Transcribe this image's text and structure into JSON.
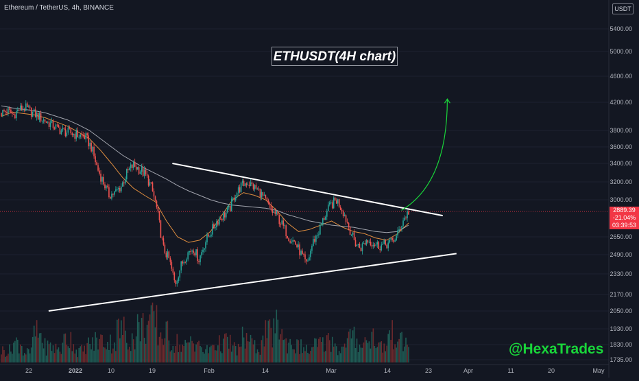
{
  "header": {
    "symbol": "Ethereum / TetherUS, 4h, BINANCE",
    "currency": "USDT"
  },
  "annotation": "ETHUSDT(4H chart)",
  "watermark": "@HexaTrades",
  "price_tag": {
    "price": "2889.39",
    "change": "-21.04%",
    "countdown": "03:39:53"
  },
  "colors": {
    "background": "#131722",
    "up": "#26a69a",
    "down": "#ef5350",
    "trendline": "#ffffff",
    "projection": "#19d63a",
    "ma_fast": "#f59a42",
    "ma_slow": "#b2b5be",
    "price_line": "#f23645"
  },
  "chart_data": {
    "type": "candlestick",
    "interval": "4h",
    "series": [
      {
        "name": "ETHUSDT",
        "kind": "candles",
        "closes": [
          4050,
          4080,
          4020,
          4100,
          4120,
          4060,
          4010,
          3950,
          3900,
          3850,
          3800,
          3780,
          3760,
          3740,
          3720,
          3600,
          3350,
          3200,
          3050,
          3080,
          3150,
          3300,
          3380,
          3340,
          3280,
          3150,
          2900,
          2550,
          2450,
          2250,
          2400,
          2500,
          2550,
          2450,
          2600,
          2700,
          2800,
          2850,
          2900,
          3050,
          3150,
          3200,
          3150,
          3100,
          3000,
          2900,
          2850,
          2750,
          2650,
          2600,
          2500,
          2400,
          2600,
          2700,
          2850,
          2950,
          3000,
          2900,
          2750,
          2600,
          2550,
          2620,
          2600,
          2570,
          2580,
          2600,
          2650,
          2800,
          2889
        ]
      }
    ],
    "y_ticks": [
      5400,
      5000,
      4600,
      4200,
      3800,
      3600,
      3400,
      3200,
      3000,
      2650,
      2490,
      2330,
      2170,
      2050,
      1930,
      1830,
      1735
    ],
    "x_ticks": [
      "22",
      "2022",
      "10",
      "19",
      "Feb",
      "14",
      "Mar",
      "14",
      "23",
      "Apr",
      "11",
      "20",
      "May"
    ],
    "x_range": [
      "2021-12-19",
      "2022-05-01"
    ],
    "y_range": [
      1700,
      5800
    ],
    "y_scale": "log",
    "trendlines": [
      {
        "name": "descending resistance",
        "from": [
          "2022-01-28",
          3400
        ],
        "to": [
          "2022-03-28",
          2850
        ]
      },
      {
        "name": "ascending support",
        "from": [
          "2022-01-01",
          2050
        ],
        "to": [
          "2022-03-31",
          2500
        ]
      }
    ],
    "projection": {
      "from": [
        "2022-03-19",
        2900
      ],
      "to": [
        "2022-03-29",
        4250
      ]
    },
    "moving_averages": [
      {
        "name": "fast",
        "values": [
          4000,
          4060,
          4040,
          4020,
          3980,
          3920,
          3860,
          3780,
          3700,
          3560,
          3400,
          3250,
          3130,
          3050,
          2980,
          2800,
          2650,
          2600,
          2620,
          2700,
          2850,
          3000,
          3080,
          3050,
          3000,
          2900,
          2780,
          2700,
          2720,
          2760,
          2800,
          2740,
          2700,
          2680,
          2640,
          2620,
          2680,
          2780
        ]
      },
      {
        "name": "slow",
        "values": [
          4150,
          4120,
          4100,
          4080,
          4050,
          4000,
          3950,
          3880,
          3800,
          3700,
          3600,
          3500,
          3420,
          3350,
          3290,
          3230,
          3160,
          3100,
          3050,
          3000,
          2970,
          2950,
          2940,
          2930,
          2920,
          2900,
          2860,
          2830,
          2800,
          2780,
          2760,
          2750,
          2740,
          2720,
          2700,
          2690,
          2700,
          2760
        ]
      }
    ],
    "volume_relative": [
      0.3,
      0.5,
      0.25,
      0.7,
      0.4,
      0.35,
      0.6,
      0.3,
      0.45,
      0.55,
      0.5,
      0.8,
      0.6,
      0.9,
      1.0,
      0.7,
      0.5,
      0.4,
      0.55,
      0.3,
      0.45,
      0.5,
      0.35,
      0.6,
      0.4,
      0.7,
      0.9,
      0.5,
      0.4,
      0.3,
      0.45,
      0.55,
      0.35,
      0.6,
      0.5,
      0.65,
      0.4,
      0.7,
      0.5,
      0.45
    ]
  }
}
